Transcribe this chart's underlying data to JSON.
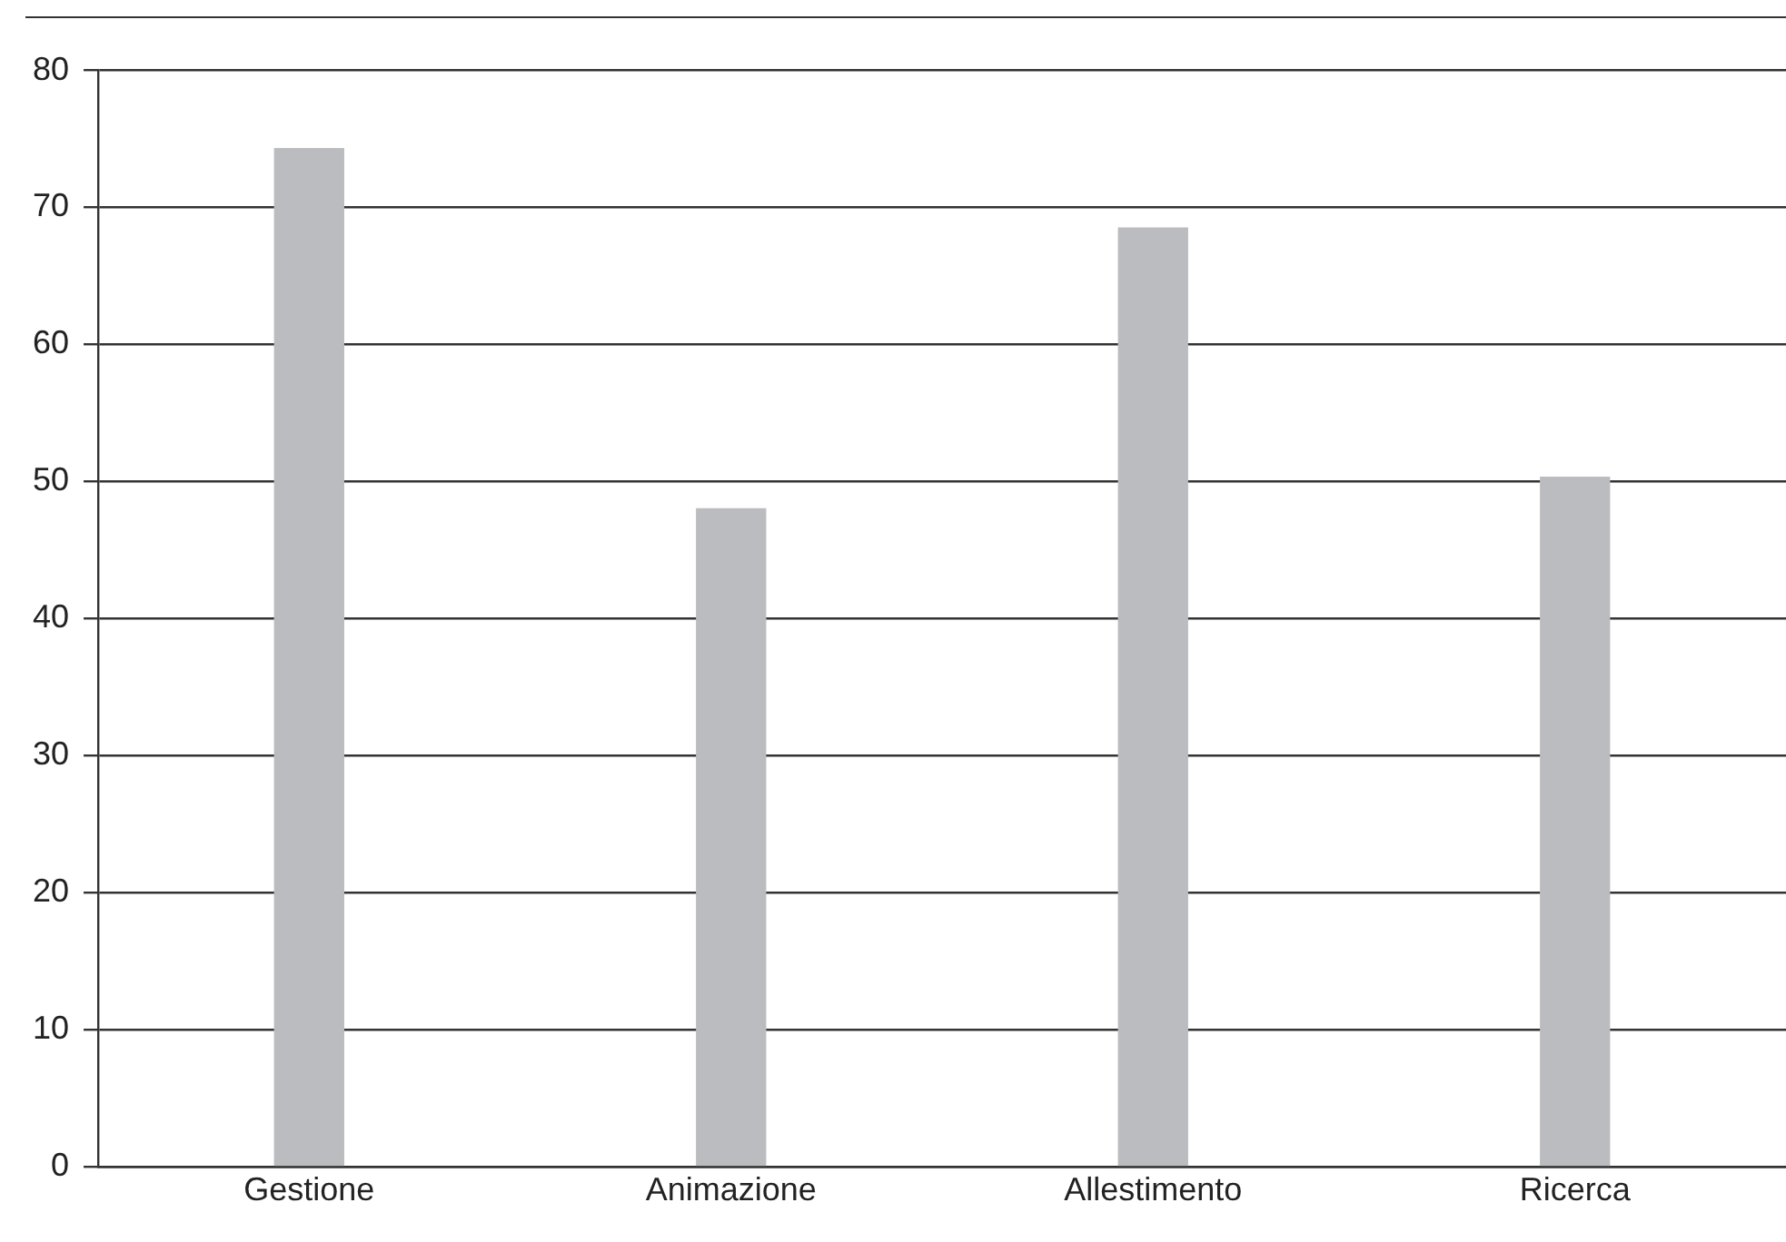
{
  "chart_data": {
    "type": "bar",
    "categories": [
      "Gestione",
      "Animazione",
      "Allestimento",
      "Ricerca"
    ],
    "values": [
      74.3,
      48.0,
      68.5,
      50.3
    ],
    "color": "#bbbcbf",
    "ylim": [
      0,
      80
    ],
    "yticks": [
      0,
      10,
      20,
      30,
      40,
      50,
      60,
      70,
      80
    ],
    "grid": "y",
    "legend": false
  }
}
